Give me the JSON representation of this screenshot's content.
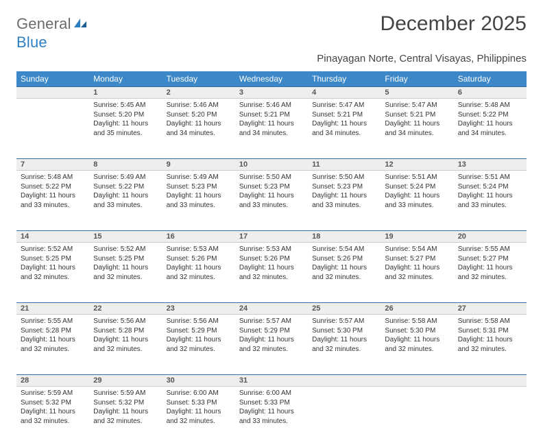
{
  "logo": {
    "text_gray": "General",
    "text_blue": "Blue"
  },
  "title": "December 2025",
  "subtitle": "Pinayagan Norte, Central Visayas, Philippines",
  "colors": {
    "header_bg": "#3b87c8",
    "header_text": "#ffffff",
    "daynum_bg": "#eeeeee",
    "daynum_border_top": "#2f6fa8",
    "body_text": "#333333",
    "logo_gray": "#6b6b6b",
    "logo_blue": "#2f7fc3"
  },
  "weekdays": [
    "Sunday",
    "Monday",
    "Tuesday",
    "Wednesday",
    "Thursday",
    "Friday",
    "Saturday"
  ],
  "weeks": [
    [
      null,
      {
        "n": "1",
        "sunrise": "5:45 AM",
        "sunset": "5:20 PM",
        "day_h": "11",
        "day_m": "35"
      },
      {
        "n": "2",
        "sunrise": "5:46 AM",
        "sunset": "5:20 PM",
        "day_h": "11",
        "day_m": "34"
      },
      {
        "n": "3",
        "sunrise": "5:46 AM",
        "sunset": "5:21 PM",
        "day_h": "11",
        "day_m": "34"
      },
      {
        "n": "4",
        "sunrise": "5:47 AM",
        "sunset": "5:21 PM",
        "day_h": "11",
        "day_m": "34"
      },
      {
        "n": "5",
        "sunrise": "5:47 AM",
        "sunset": "5:21 PM",
        "day_h": "11",
        "day_m": "34"
      },
      {
        "n": "6",
        "sunrise": "5:48 AM",
        "sunset": "5:22 PM",
        "day_h": "11",
        "day_m": "34"
      }
    ],
    [
      {
        "n": "7",
        "sunrise": "5:48 AM",
        "sunset": "5:22 PM",
        "day_h": "11",
        "day_m": "33"
      },
      {
        "n": "8",
        "sunrise": "5:49 AM",
        "sunset": "5:22 PM",
        "day_h": "11",
        "day_m": "33"
      },
      {
        "n": "9",
        "sunrise": "5:49 AM",
        "sunset": "5:23 PM",
        "day_h": "11",
        "day_m": "33"
      },
      {
        "n": "10",
        "sunrise": "5:50 AM",
        "sunset": "5:23 PM",
        "day_h": "11",
        "day_m": "33"
      },
      {
        "n": "11",
        "sunrise": "5:50 AM",
        "sunset": "5:23 PM",
        "day_h": "11",
        "day_m": "33"
      },
      {
        "n": "12",
        "sunrise": "5:51 AM",
        "sunset": "5:24 PM",
        "day_h": "11",
        "day_m": "33"
      },
      {
        "n": "13",
        "sunrise": "5:51 AM",
        "sunset": "5:24 PM",
        "day_h": "11",
        "day_m": "33"
      }
    ],
    [
      {
        "n": "14",
        "sunrise": "5:52 AM",
        "sunset": "5:25 PM",
        "day_h": "11",
        "day_m": "32"
      },
      {
        "n": "15",
        "sunrise": "5:52 AM",
        "sunset": "5:25 PM",
        "day_h": "11",
        "day_m": "32"
      },
      {
        "n": "16",
        "sunrise": "5:53 AM",
        "sunset": "5:26 PM",
        "day_h": "11",
        "day_m": "32"
      },
      {
        "n": "17",
        "sunrise": "5:53 AM",
        "sunset": "5:26 PM",
        "day_h": "11",
        "day_m": "32"
      },
      {
        "n": "18",
        "sunrise": "5:54 AM",
        "sunset": "5:26 PM",
        "day_h": "11",
        "day_m": "32"
      },
      {
        "n": "19",
        "sunrise": "5:54 AM",
        "sunset": "5:27 PM",
        "day_h": "11",
        "day_m": "32"
      },
      {
        "n": "20",
        "sunrise": "5:55 AM",
        "sunset": "5:27 PM",
        "day_h": "11",
        "day_m": "32"
      }
    ],
    [
      {
        "n": "21",
        "sunrise": "5:55 AM",
        "sunset": "5:28 PM",
        "day_h": "11",
        "day_m": "32"
      },
      {
        "n": "22",
        "sunrise": "5:56 AM",
        "sunset": "5:28 PM",
        "day_h": "11",
        "day_m": "32"
      },
      {
        "n": "23",
        "sunrise": "5:56 AM",
        "sunset": "5:29 PM",
        "day_h": "11",
        "day_m": "32"
      },
      {
        "n": "24",
        "sunrise": "5:57 AM",
        "sunset": "5:29 PM",
        "day_h": "11",
        "day_m": "32"
      },
      {
        "n": "25",
        "sunrise": "5:57 AM",
        "sunset": "5:30 PM",
        "day_h": "11",
        "day_m": "32"
      },
      {
        "n": "26",
        "sunrise": "5:58 AM",
        "sunset": "5:30 PM",
        "day_h": "11",
        "day_m": "32"
      },
      {
        "n": "27",
        "sunrise": "5:58 AM",
        "sunset": "5:31 PM",
        "day_h": "11",
        "day_m": "32"
      }
    ],
    [
      {
        "n": "28",
        "sunrise": "5:59 AM",
        "sunset": "5:32 PM",
        "day_h": "11",
        "day_m": "32"
      },
      {
        "n": "29",
        "sunrise": "5:59 AM",
        "sunset": "5:32 PM",
        "day_h": "11",
        "day_m": "32"
      },
      {
        "n": "30",
        "sunrise": "6:00 AM",
        "sunset": "5:33 PM",
        "day_h": "11",
        "day_m": "32"
      },
      {
        "n": "31",
        "sunrise": "6:00 AM",
        "sunset": "5:33 PM",
        "day_h": "11",
        "day_m": "33"
      },
      null,
      null,
      null
    ]
  ],
  "labels": {
    "sunrise": "Sunrise:",
    "sunset": "Sunset:",
    "daylight_prefix": "Daylight:",
    "hours_word": "hours",
    "and_word": "and",
    "minutes_word": "minutes."
  }
}
